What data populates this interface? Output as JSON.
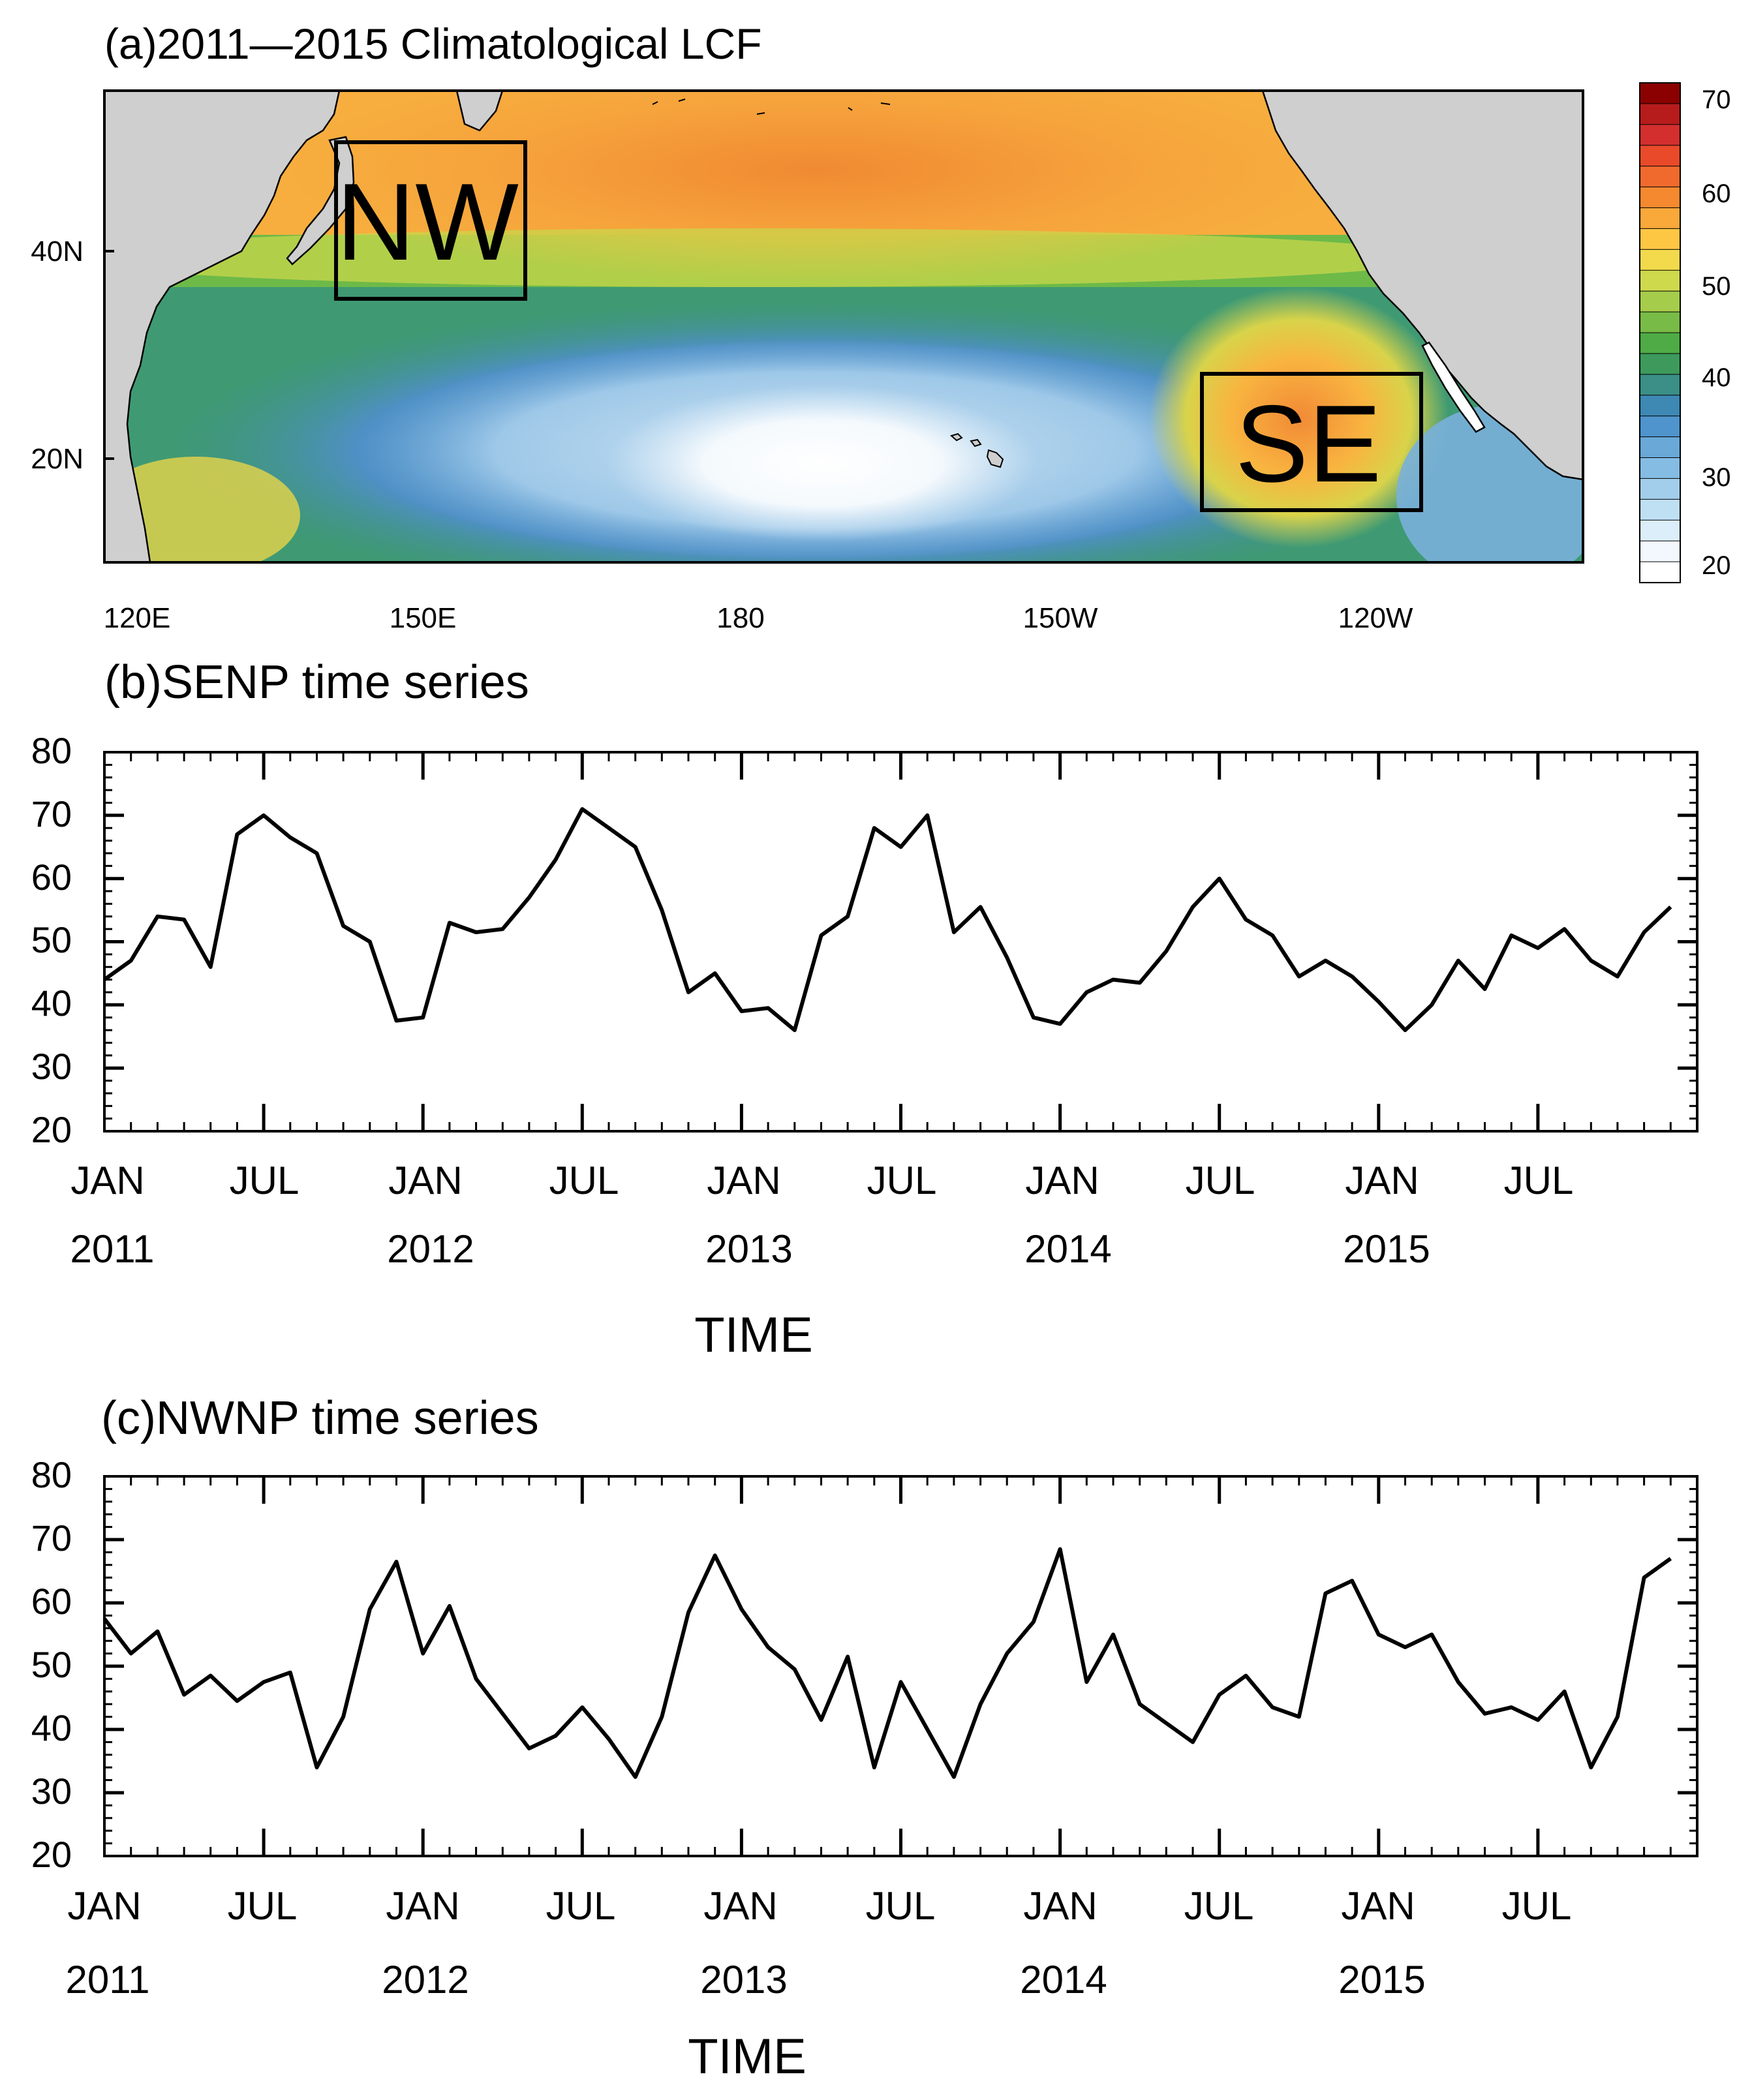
{
  "panel_a": {
    "title": "(a)2011—2015 Climatological LCF",
    "lat_labels": [
      "40N",
      "20N"
    ],
    "lon_labels": [
      "120E",
      "150E",
      "180",
      "150W",
      "120W"
    ],
    "box_labels": [
      "NW",
      "SE"
    ],
    "colorbar": {
      "ticks": [
        "70",
        "60",
        "50",
        "40",
        "30",
        "20"
      ],
      "colors": [
        "#8b0000",
        "#b71c1c",
        "#d32f2f",
        "#e84a2a",
        "#f06a2e",
        "#f5892f",
        "#f9a83a",
        "#fdc744",
        "#f2da4c",
        "#cfd94c",
        "#a5cc4a",
        "#78bb46",
        "#4eab45",
        "#3d9a5c",
        "#3b8f86",
        "#3e88b4",
        "#4f94cc",
        "#6aa8d8",
        "#85bce3",
        "#a2ceec",
        "#bfdff3",
        "#dbeef9",
        "#f2f8fd",
        "#ffffff"
      ]
    }
  },
  "chart_data": [
    {
      "type": "line",
      "title": "(b)SENP time series",
      "xlabel": "TIME",
      "ylabel": "",
      "ylim": [
        20,
        80
      ],
      "yticks": [
        "80",
        "70",
        "60",
        "50",
        "40",
        "30",
        "20"
      ],
      "xticks_month": [
        "JAN",
        "JUL",
        "JAN",
        "JUL",
        "JAN",
        "JUL",
        "JAN",
        "JUL",
        "JAN",
        "JUL"
      ],
      "xticks_year": [
        "2011",
        "2012",
        "2013",
        "2014",
        "2015"
      ],
      "series": [
        {
          "name": "SENP",
          "start": "2011-01",
          "values": [
            44,
            47,
            54,
            53.5,
            46,
            67,
            70,
            66.5,
            64,
            52.5,
            50,
            37.5,
            38,
            53,
            51.5,
            52,
            57,
            63,
            71,
            68,
            65,
            55,
            42,
            45,
            39,
            39.5,
            36,
            51,
            54,
            68,
            65,
            70,
            51.5,
            55.5,
            47.5,
            38,
            37,
            42,
            44,
            43.5,
            48.5,
            55.5,
            60,
            53.5,
            51,
            44.5,
            47,
            44.5,
            40.5,
            36,
            40,
            47,
            42.5,
            51,
            49,
            52,
            47,
            44.5,
            51.5,
            55.5
          ]
        }
      ]
    },
    {
      "type": "line",
      "title": "(c)NWNP time series",
      "xlabel": "TIME",
      "ylabel": "",
      "ylim": [
        20,
        80
      ],
      "yticks": [
        "80",
        "70",
        "60",
        "50",
        "40",
        "30",
        "20"
      ],
      "xticks_month": [
        "JAN",
        "JUL",
        "JAN",
        "JUL",
        "JAN",
        "JUL",
        "JAN",
        "JUL",
        "JAN",
        "JUL"
      ],
      "xticks_year": [
        "2011",
        "2012",
        "2013",
        "2014",
        "2015"
      ],
      "series": [
        {
          "name": "NWNP",
          "start": "2011-01",
          "values": [
            57.5,
            52,
            55.5,
            45.5,
            48.5,
            44.5,
            47.5,
            49,
            34,
            42,
            59,
            66.5,
            52,
            59.5,
            48,
            42.5,
            37,
            39,
            43.5,
            38.5,
            32.5,
            42,
            58.5,
            67.5,
            59,
            53,
            49.5,
            41.5,
            51.5,
            34,
            47.5,
            40,
            32.5,
            44,
            52,
            57,
            68.5,
            47.5,
            55,
            44,
            41,
            38,
            45.5,
            48.5,
            43.5,
            42,
            61.5,
            63.5,
            55,
            53,
            55,
            47.5,
            42.5,
            43.5,
            41.5,
            46,
            34,
            42,
            64,
            67
          ]
        }
      ]
    }
  ]
}
